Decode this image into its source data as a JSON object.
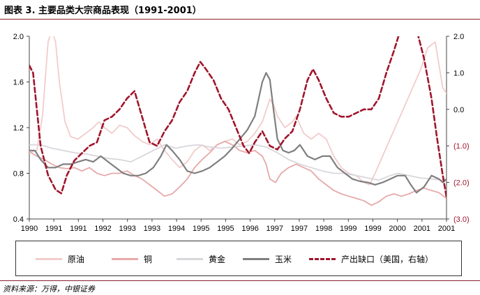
{
  "figure": {
    "title": "图表 3. 主要品类大宗商品表现（1991-2001）",
    "source": "资料来源：万得，中银证券"
  },
  "colors": {
    "crude": "#f2cccc",
    "copper": "#e6a9a9",
    "gold": "#d9d6dc",
    "corn": "#7f7f7f",
    "gap": "#a0152b",
    "axis": "#444444",
    "accent": "#8b1d2c"
  },
  "chart_data": {
    "type": "line",
    "title": "",
    "x_ticks": [
      "1990",
      "1991",
      "1991",
      "1992",
      "1993",
      "1993",
      "1994",
      "1995",
      "1995",
      "1996",
      "1997",
      "1997",
      "1998",
      "1999",
      "1999",
      "2000",
      "2001",
      "2001"
    ],
    "xlim": [
      1990.0,
      2001.1
    ],
    "ylim_left": [
      0.4,
      2.0
    ],
    "yticks_left": [
      "0.4",
      "0.8",
      "1.2",
      "1.6",
      "2.0"
    ],
    "ylim_right": [
      -3.0,
      2.0
    ],
    "yticks_right": [
      "(3.0)",
      "(2.0)",
      "(1.0)",
      "0.0",
      "1.0",
      "2.0"
    ],
    "legend_position": "bottom",
    "series": [
      {
        "name": "原油",
        "key": "crude",
        "axis": "left",
        "style": "solid",
        "points": [
          [
            1990.0,
            0.98
          ],
          [
            1990.2,
            1.0
          ],
          [
            1990.35,
            1.3
          ],
          [
            1990.5,
            1.95
          ],
          [
            1990.6,
            2.05
          ],
          [
            1990.7,
            1.95
          ],
          [
            1990.8,
            1.6
          ],
          [
            1990.95,
            1.25
          ],
          [
            1991.1,
            1.12
          ],
          [
            1991.3,
            1.1
          ],
          [
            1991.5,
            1.15
          ],
          [
            1991.7,
            1.2
          ],
          [
            1991.85,
            1.25
          ],
          [
            1992.0,
            1.2
          ],
          [
            1992.2,
            1.15
          ],
          [
            1992.4,
            1.22
          ],
          [
            1992.6,
            1.2
          ],
          [
            1992.8,
            1.13
          ],
          [
            1993.0,
            1.08
          ],
          [
            1993.2,
            1.05
          ],
          [
            1993.4,
            1.1
          ],
          [
            1993.6,
            1.0
          ],
          [
            1993.8,
            0.92
          ],
          [
            1994.0,
            0.85
          ],
          [
            1994.2,
            0.9
          ],
          [
            1994.4,
            1.0
          ],
          [
            1994.6,
            1.05
          ],
          [
            1994.8,
            1.0
          ],
          [
            1995.0,
            1.05
          ],
          [
            1995.2,
            1.08
          ],
          [
            1995.4,
            1.1
          ],
          [
            1995.6,
            1.05
          ],
          [
            1995.8,
            1.08
          ],
          [
            1996.0,
            1.15
          ],
          [
            1996.2,
            1.25
          ],
          [
            1996.4,
            1.45
          ],
          [
            1996.5,
            1.4
          ],
          [
            1996.6,
            1.3
          ],
          [
            1996.8,
            1.2
          ],
          [
            1997.0,
            1.25
          ],
          [
            1997.1,
            1.3
          ],
          [
            1997.3,
            1.15
          ],
          [
            1997.5,
            1.1
          ],
          [
            1997.7,
            1.15
          ],
          [
            1997.9,
            1.1
          ],
          [
            1998.1,
            0.95
          ],
          [
            1998.3,
            0.85
          ],
          [
            1998.5,
            0.8
          ],
          [
            1998.7,
            0.78
          ],
          [
            1998.9,
            0.72
          ],
          [
            1999.05,
            0.7
          ],
          [
            1999.2,
            0.8
          ],
          [
            1999.4,
            0.95
          ],
          [
            1999.6,
            1.1
          ],
          [
            1999.8,
            1.25
          ],
          [
            2000.0,
            1.4
          ],
          [
            2000.2,
            1.55
          ],
          [
            2000.4,
            1.7
          ],
          [
            2000.5,
            1.8
          ],
          [
            2000.6,
            1.9
          ],
          [
            2000.8,
            1.95
          ],
          [
            2000.9,
            1.75
          ],
          [
            2001.0,
            1.55
          ],
          [
            2001.1,
            1.5
          ]
        ]
      },
      {
        "name": "铜",
        "key": "copper",
        "axis": "left",
        "style": "solid",
        "points": [
          [
            1990.0,
            0.99
          ],
          [
            1990.2,
            0.95
          ],
          [
            1990.4,
            0.92
          ],
          [
            1990.6,
            0.88
          ],
          [
            1990.8,
            0.85
          ],
          [
            1991.0,
            0.84
          ],
          [
            1991.2,
            0.85
          ],
          [
            1991.4,
            0.82
          ],
          [
            1991.6,
            0.85
          ],
          [
            1991.8,
            0.8
          ],
          [
            1992.0,
            0.78
          ],
          [
            1992.2,
            0.8
          ],
          [
            1992.4,
            0.8
          ],
          [
            1992.6,
            0.82
          ],
          [
            1992.8,
            0.78
          ],
          [
            1993.0,
            0.75
          ],
          [
            1993.2,
            0.7
          ],
          [
            1993.4,
            0.65
          ],
          [
            1993.6,
            0.6
          ],
          [
            1993.8,
            0.62
          ],
          [
            1994.0,
            0.68
          ],
          [
            1994.2,
            0.75
          ],
          [
            1994.4,
            0.85
          ],
          [
            1994.6,
            0.92
          ],
          [
            1994.8,
            0.98
          ],
          [
            1995.0,
            1.05
          ],
          [
            1995.2,
            1.08
          ],
          [
            1995.4,
            1.05
          ],
          [
            1995.6,
            1.0
          ],
          [
            1995.8,
            0.98
          ],
          [
            1996.0,
            1.0
          ],
          [
            1996.2,
            0.95
          ],
          [
            1996.3,
            0.88
          ],
          [
            1996.4,
            0.75
          ],
          [
            1996.55,
            0.72
          ],
          [
            1996.7,
            0.8
          ],
          [
            1996.9,
            0.85
          ],
          [
            1997.1,
            0.88
          ],
          [
            1997.3,
            0.85
          ],
          [
            1997.5,
            0.82
          ],
          [
            1997.7,
            0.75
          ],
          [
            1997.9,
            0.7
          ],
          [
            1998.1,
            0.65
          ],
          [
            1998.3,
            0.62
          ],
          [
            1998.5,
            0.6
          ],
          [
            1998.7,
            0.58
          ],
          [
            1998.9,
            0.56
          ],
          [
            1999.1,
            0.52
          ],
          [
            1999.3,
            0.55
          ],
          [
            1999.5,
            0.6
          ],
          [
            1999.7,
            0.62
          ],
          [
            1999.9,
            0.6
          ],
          [
            2000.1,
            0.62
          ],
          [
            2000.3,
            0.65
          ],
          [
            2000.5,
            0.67
          ],
          [
            2000.7,
            0.65
          ],
          [
            2000.9,
            0.63
          ],
          [
            2001.1,
            0.58
          ]
        ]
      },
      {
        "name": "黄金",
        "key": "gold",
        "axis": "left",
        "style": "solid",
        "points": [
          [
            1990.0,
            1.05
          ],
          [
            1990.3,
            1.05
          ],
          [
            1990.6,
            1.02
          ],
          [
            1990.9,
            1.0
          ],
          [
            1991.2,
            0.98
          ],
          [
            1991.5,
            0.97
          ],
          [
            1991.8,
            0.95
          ],
          [
            1992.1,
            0.93
          ],
          [
            1992.4,
            0.92
          ],
          [
            1992.7,
            0.9
          ],
          [
            1993.0,
            0.95
          ],
          [
            1993.3,
            1.0
          ],
          [
            1993.6,
            1.05
          ],
          [
            1993.9,
            1.02
          ],
          [
            1994.2,
            1.04
          ],
          [
            1994.5,
            1.05
          ],
          [
            1994.8,
            1.03
          ],
          [
            1995.1,
            1.02
          ],
          [
            1995.4,
            1.03
          ],
          [
            1995.7,
            1.04
          ],
          [
            1996.0,
            1.05
          ],
          [
            1996.3,
            1.03
          ],
          [
            1996.6,
            0.98
          ],
          [
            1996.9,
            0.92
          ],
          [
            1997.2,
            0.88
          ],
          [
            1997.5,
            0.85
          ],
          [
            1997.8,
            0.82
          ],
          [
            1998.1,
            0.8
          ],
          [
            1998.4,
            0.8
          ],
          [
            1998.7,
            0.78
          ],
          [
            1999.0,
            0.76
          ],
          [
            1999.3,
            0.74
          ],
          [
            1999.6,
            0.78
          ],
          [
            1999.8,
            0.8
          ],
          [
            2000.1,
            0.78
          ],
          [
            2000.4,
            0.76
          ],
          [
            2000.7,
            0.75
          ],
          [
            2001.0,
            0.74
          ],
          [
            2001.1,
            0.75
          ]
        ]
      },
      {
        "name": "玉米",
        "key": "corn",
        "axis": "left",
        "style": "solid",
        "points": [
          [
            1990.0,
            1.0
          ],
          [
            1990.15,
            1.0
          ],
          [
            1990.3,
            0.92
          ],
          [
            1990.5,
            0.85
          ],
          [
            1990.7,
            0.85
          ],
          [
            1990.9,
            0.88
          ],
          [
            1991.1,
            0.88
          ],
          [
            1991.3,
            0.9
          ],
          [
            1991.5,
            0.92
          ],
          [
            1991.7,
            0.9
          ],
          [
            1991.9,
            0.95
          ],
          [
            1992.1,
            0.9
          ],
          [
            1992.3,
            0.85
          ],
          [
            1992.5,
            0.8
          ],
          [
            1992.7,
            0.78
          ],
          [
            1992.9,
            0.78
          ],
          [
            1993.1,
            0.8
          ],
          [
            1993.3,
            0.85
          ],
          [
            1993.5,
            0.95
          ],
          [
            1993.65,
            1.05
          ],
          [
            1993.8,
            1.0
          ],
          [
            1994.0,
            0.92
          ],
          [
            1994.2,
            0.82
          ],
          [
            1994.4,
            0.8
          ],
          [
            1994.6,
            0.82
          ],
          [
            1994.8,
            0.85
          ],
          [
            1995.0,
            0.9
          ],
          [
            1995.2,
            0.95
          ],
          [
            1995.4,
            1.02
          ],
          [
            1995.6,
            1.1
          ],
          [
            1995.8,
            1.18
          ],
          [
            1996.0,
            1.3
          ],
          [
            1996.1,
            1.45
          ],
          [
            1996.2,
            1.6
          ],
          [
            1996.3,
            1.68
          ],
          [
            1996.4,
            1.62
          ],
          [
            1996.5,
            1.35
          ],
          [
            1996.6,
            1.1
          ],
          [
            1996.75,
            1.0
          ],
          [
            1996.9,
            0.98
          ],
          [
            1997.05,
            1.0
          ],
          [
            1997.2,
            1.05
          ],
          [
            1997.4,
            0.95
          ],
          [
            1997.6,
            0.92
          ],
          [
            1997.8,
            0.95
          ],
          [
            1998.0,
            0.95
          ],
          [
            1998.2,
            0.85
          ],
          [
            1998.4,
            0.8
          ],
          [
            1998.6,
            0.75
          ],
          [
            1998.8,
            0.73
          ],
          [
            1999.0,
            0.72
          ],
          [
            1999.2,
            0.7
          ],
          [
            1999.4,
            0.72
          ],
          [
            1999.6,
            0.75
          ],
          [
            1999.8,
            0.78
          ],
          [
            2000.0,
            0.78
          ],
          [
            2000.15,
            0.7
          ],
          [
            2000.3,
            0.63
          ],
          [
            2000.5,
            0.68
          ],
          [
            2000.7,
            0.78
          ],
          [
            2000.9,
            0.75
          ],
          [
            2001.0,
            0.72
          ],
          [
            2001.1,
            0.75
          ]
        ]
      },
      {
        "name": "产出缺口（美国，右轴）",
        "key": "gap",
        "axis": "right",
        "style": "dashed",
        "points": [
          [
            1990.0,
            1.2
          ],
          [
            1990.1,
            1.0
          ],
          [
            1990.3,
            -1.0
          ],
          [
            1990.5,
            -1.8
          ],
          [
            1990.7,
            -2.2
          ],
          [
            1990.85,
            -2.3
          ],
          [
            1991.0,
            -1.8
          ],
          [
            1991.2,
            -1.4
          ],
          [
            1991.4,
            -1.2
          ],
          [
            1991.6,
            -1.0
          ],
          [
            1991.8,
            -0.9
          ],
          [
            1992.0,
            -0.3
          ],
          [
            1992.2,
            -0.2
          ],
          [
            1992.4,
            0.0
          ],
          [
            1992.6,
            0.3
          ],
          [
            1992.8,
            0.5
          ],
          [
            1993.0,
            -0.2
          ],
          [
            1993.2,
            -0.9
          ],
          [
            1993.4,
            -1.0
          ],
          [
            1993.6,
            -0.6
          ],
          [
            1993.8,
            -0.3
          ],
          [
            1994.0,
            0.2
          ],
          [
            1994.2,
            0.5
          ],
          [
            1994.4,
            1.0
          ],
          [
            1994.55,
            1.3
          ],
          [
            1994.7,
            1.1
          ],
          [
            1994.9,
            0.8
          ],
          [
            1995.1,
            0.3
          ],
          [
            1995.3,
            0.0
          ],
          [
            1995.5,
            -0.5
          ],
          [
            1995.7,
            -1.0
          ],
          [
            1995.85,
            -1.2
          ],
          [
            1996.0,
            -0.9
          ],
          [
            1996.2,
            -0.6
          ],
          [
            1996.4,
            -1.0
          ],
          [
            1996.6,
            -1.1
          ],
          [
            1996.8,
            -0.8
          ],
          [
            1997.0,
            -0.6
          ],
          [
            1997.2,
            0.0
          ],
          [
            1997.4,
            0.8
          ],
          [
            1997.55,
            1.1
          ],
          [
            1997.7,
            0.8
          ],
          [
            1997.9,
            0.3
          ],
          [
            1998.1,
            -0.1
          ],
          [
            1998.3,
            -0.2
          ],
          [
            1998.5,
            -0.2
          ],
          [
            1998.7,
            -0.1
          ],
          [
            1998.9,
            0.0
          ],
          [
            1999.1,
            0.0
          ],
          [
            1999.3,
            0.3
          ],
          [
            1999.5,
            1.0
          ],
          [
            1999.7,
            1.6
          ],
          [
            1999.85,
            2.1
          ],
          [
            2000.0,
            2.4
          ],
          [
            2000.2,
            2.3
          ],
          [
            2000.35,
            2.0
          ],
          [
            2000.5,
            1.4
          ],
          [
            2000.7,
            0.3
          ],
          [
            2000.85,
            -0.8
          ],
          [
            2001.0,
            -1.8
          ],
          [
            2001.1,
            -2.4
          ],
          [
            2001.2,
            -2.7
          ]
        ]
      }
    ]
  }
}
